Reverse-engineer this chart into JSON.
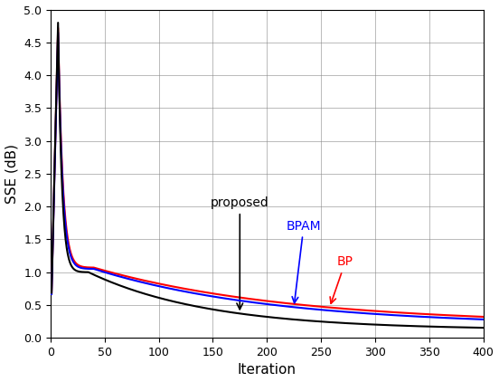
{
  "title": "",
  "xlabel": "Iteration",
  "ylabel": "SSE (dB)",
  "xlim": [
    0,
    400
  ],
  "ylim": [
    0,
    5
  ],
  "yticks": [
    0,
    0.5,
    1.0,
    1.5,
    2.0,
    2.5,
    3.0,
    3.5,
    4.0,
    4.5,
    5.0
  ],
  "xticks": [
    0,
    50,
    100,
    150,
    200,
    250,
    300,
    350,
    400
  ],
  "bp_color": "#ff0000",
  "bpam_color": "#0000ff",
  "proposed_color": "#000000",
  "annotation_proposed": "proposed",
  "annotation_bpam": "BPAM",
  "annotation_bp": "BP",
  "n_points": 400,
  "figsize": [
    5.52,
    4.22
  ],
  "dpi": 100
}
